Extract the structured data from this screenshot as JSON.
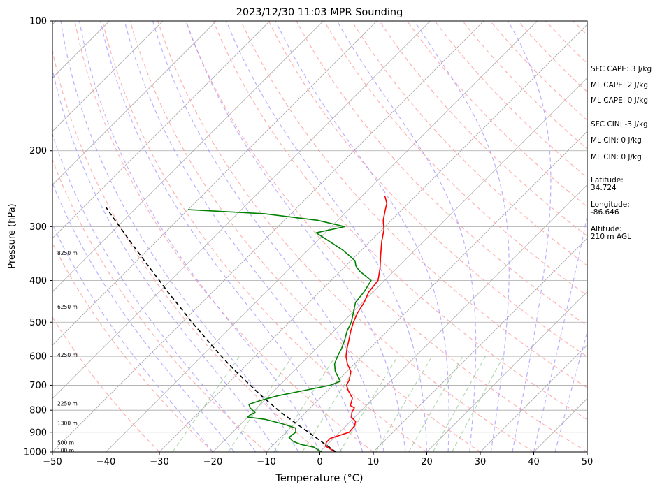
{
  "chart_data": {
    "type": "line",
    "title": "2023/12/30 11:03 MPR Sounding",
    "xlabel": "Temperature (°C)",
    "ylabel": "Pressure (hPa)",
    "xlim": [
      -50,
      50
    ],
    "ylim": [
      1000,
      100
    ],
    "yscale": "log",
    "skew": "skew-T",
    "x_ticks": [
      "−50",
      "−40",
      "−30",
      "−20",
      "−10",
      "0",
      "10",
      "20",
      "30",
      "40",
      "50"
    ],
    "y_ticks": [
      {
        "p": 100,
        "label": "100"
      },
      {
        "p": 200,
        "label": "200"
      },
      {
        "p": 300,
        "label": "300"
      },
      {
        "p": 400,
        "label": "400"
      },
      {
        "p": 500,
        "label": "500"
      },
      {
        "p": 600,
        "label": "600"
      },
      {
        "p": 700,
        "label": "700"
      },
      {
        "p": 800,
        "label": "800"
      },
      {
        "p": 900,
        "label": "900"
      },
      {
        "p": 1000,
        "label": "1000"
      }
    ],
    "height_labels": [
      {
        "p": 345,
        "label": "8250 m"
      },
      {
        "p": 460,
        "label": "6250 m"
      },
      {
        "p": 595,
        "label": "4250 m"
      },
      {
        "p": 772,
        "label": "2250 m"
      },
      {
        "p": 857,
        "label": "1300 m"
      },
      {
        "p": 950,
        "label": "500 m"
      },
      {
        "p": 990,
        "label": "100 m"
      }
    ],
    "series": [
      {
        "key": "temperature",
        "color": "#ff0000",
        "points": [
          [
            1000,
            3.0
          ],
          [
            985,
            1.5
          ],
          [
            970,
            0.0
          ],
          [
            950,
            -0.6
          ],
          [
            930,
            -0.6
          ],
          [
            900,
            1.8
          ],
          [
            870,
            1.6
          ],
          [
            850,
            1.0
          ],
          [
            830,
            -0.6
          ],
          [
            810,
            -1.4
          ],
          [
            790,
            -1.8
          ],
          [
            780,
            -3.0
          ],
          [
            770,
            -3.3
          ],
          [
            750,
            -4.0
          ],
          [
            720,
            -6.2
          ],
          [
            700,
            -7.5
          ],
          [
            680,
            -8.0
          ],
          [
            650,
            -9.3
          ],
          [
            625,
            -11.3
          ],
          [
            600,
            -13.0
          ],
          [
            575,
            -14.3
          ],
          [
            550,
            -15.5
          ],
          [
            525,
            -16.8
          ],
          [
            500,
            -18.0
          ],
          [
            475,
            -19.0
          ],
          [
            450,
            -19.7
          ],
          [
            425,
            -20.8
          ],
          [
            400,
            -21.2
          ],
          [
            375,
            -23.1
          ],
          [
            350,
            -25.4
          ],
          [
            325,
            -27.8
          ],
          [
            305,
            -29.6
          ],
          [
            290,
            -31.5
          ],
          [
            275,
            -33.0
          ],
          [
            265,
            -34.0
          ],
          [
            255,
            -35.7
          ]
        ]
      },
      {
        "key": "dewpoint",
        "color": "#008000",
        "points": [
          [
            1000,
            0.4
          ],
          [
            990,
            -0.6
          ],
          [
            975,
            -2.0
          ],
          [
            960,
            -5.0
          ],
          [
            945,
            -7.0
          ],
          [
            925,
            -8.5
          ],
          [
            900,
            -8.2
          ],
          [
            880,
            -9.0
          ],
          [
            860,
            -12.3
          ],
          [
            840,
            -16.3
          ],
          [
            830,
            -20.0
          ],
          [
            820,
            -20.0
          ],
          [
            810,
            -19.5
          ],
          [
            790,
            -21.3
          ],
          [
            775,
            -22.2
          ],
          [
            760,
            -20.8
          ],
          [
            740,
            -18.3
          ],
          [
            715,
            -13.5
          ],
          [
            700,
            -10.5
          ],
          [
            685,
            -9.4
          ],
          [
            670,
            -10.6
          ],
          [
            650,
            -12.2
          ],
          [
            625,
            -13.7
          ],
          [
            600,
            -14.6
          ],
          [
            575,
            -15.3
          ],
          [
            550,
            -16.3
          ],
          [
            525,
            -17.5
          ],
          [
            500,
            -18.4
          ],
          [
            475,
            -19.8
          ],
          [
            450,
            -21.3
          ],
          [
            425,
            -21.7
          ],
          [
            400,
            -22.5
          ],
          [
            380,
            -26.5
          ],
          [
            370,
            -28.1
          ],
          [
            360,
            -29.2
          ],
          [
            340,
            -33.5
          ],
          [
            310,
            -41.7
          ],
          [
            300,
            -37.5
          ],
          [
            290,
            -43.8
          ],
          [
            280,
            -55.0
          ],
          [
            274,
            -70.0
          ]
        ]
      },
      {
        "key": "parcel",
        "color": "#000000",
        "dash": "6,4",
        "points": [
          [
            1000,
            3.0
          ],
          [
            975,
            0.9
          ],
          [
            950,
            -1.3
          ],
          [
            925,
            -3.5
          ],
          [
            900,
            -5.8
          ],
          [
            875,
            -8.2
          ],
          [
            850,
            -10.6
          ],
          [
            825,
            -13.1
          ],
          [
            800,
            -15.6
          ],
          [
            775,
            -18.0
          ],
          [
            750,
            -20.5
          ],
          [
            725,
            -23.0
          ],
          [
            700,
            -25.5
          ],
          [
            675,
            -28.1
          ],
          [
            650,
            -30.8
          ],
          [
            625,
            -33.5
          ],
          [
            600,
            -36.3
          ],
          [
            575,
            -39.1
          ],
          [
            550,
            -42.0
          ],
          [
            525,
            -45.0
          ],
          [
            500,
            -48.2
          ],
          [
            475,
            -51.4
          ],
          [
            450,
            -54.8
          ],
          [
            425,
            -58.4
          ],
          [
            400,
            -62.1
          ],
          [
            375,
            -66.1
          ],
          [
            350,
            -70.3
          ],
          [
            325,
            -74.8
          ],
          [
            300,
            -79.6
          ],
          [
            285,
            -82.7
          ],
          [
            270,
            -85.9
          ]
        ]
      }
    ],
    "background_lines": {
      "dry_adiabat_color": "#ff9f9f",
      "moist_adiabat_color": "#9f8fff",
      "mixing_ratio_color": "#7fbf7f",
      "isotherm_color": "#a9a9a9",
      "isobar_color": "#a9a9a9"
    }
  },
  "stats": {
    "sfc_cape": "SFC CAPE: 3 J/kg",
    "ml_cape_1": "ML CAPE: 2 J/kg",
    "ml_cape_2": "ML CAPE: 0 J/kg",
    "sfc_cin": "SFC CIN: -3 J/kg",
    "ml_cin_1": "ML CIN: 0 J/kg",
    "ml_cin_2": "ML CIN: 0 J/kg",
    "latitude_label": "Latitude:",
    "latitude_value": "34.724",
    "longitude_label": "Longitude:",
    "longitude_value": "-86.646",
    "altitude_label": "Altitude:",
    "altitude_value": "210 m AGL"
  }
}
